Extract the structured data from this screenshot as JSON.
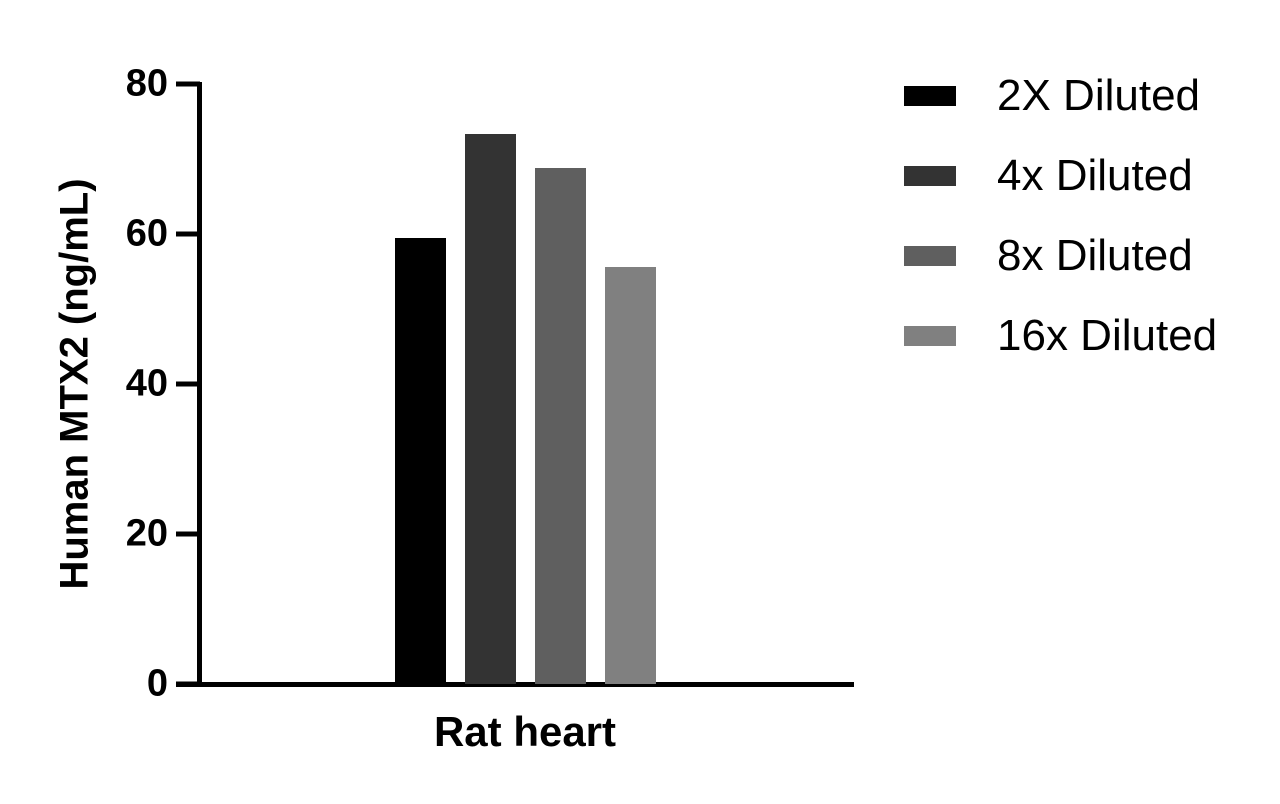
{
  "chart_data": {
    "type": "bar",
    "title": "",
    "xlabel": "",
    "ylabel": "Human MTX2 (ng/mL)",
    "categories": [
      "Rat heart"
    ],
    "series": [
      {
        "name": "2X Diluted",
        "values": [
          59.5
        ],
        "color": "#000000"
      },
      {
        "name": "4x Diluted",
        "values": [
          73.3
        ],
        "color": "#333333"
      },
      {
        "name": "8x Diluted",
        "values": [
          68.8
        ],
        "color": "#5f5f5f"
      },
      {
        "name": "16x Diluted",
        "values": [
          55.6
        ],
        "color": "#808080"
      }
    ],
    "ylim": [
      0,
      80
    ],
    "yticks": [
      "0",
      "20",
      "40",
      "60",
      "80"
    ],
    "grid": false,
    "legend_position": "right"
  }
}
